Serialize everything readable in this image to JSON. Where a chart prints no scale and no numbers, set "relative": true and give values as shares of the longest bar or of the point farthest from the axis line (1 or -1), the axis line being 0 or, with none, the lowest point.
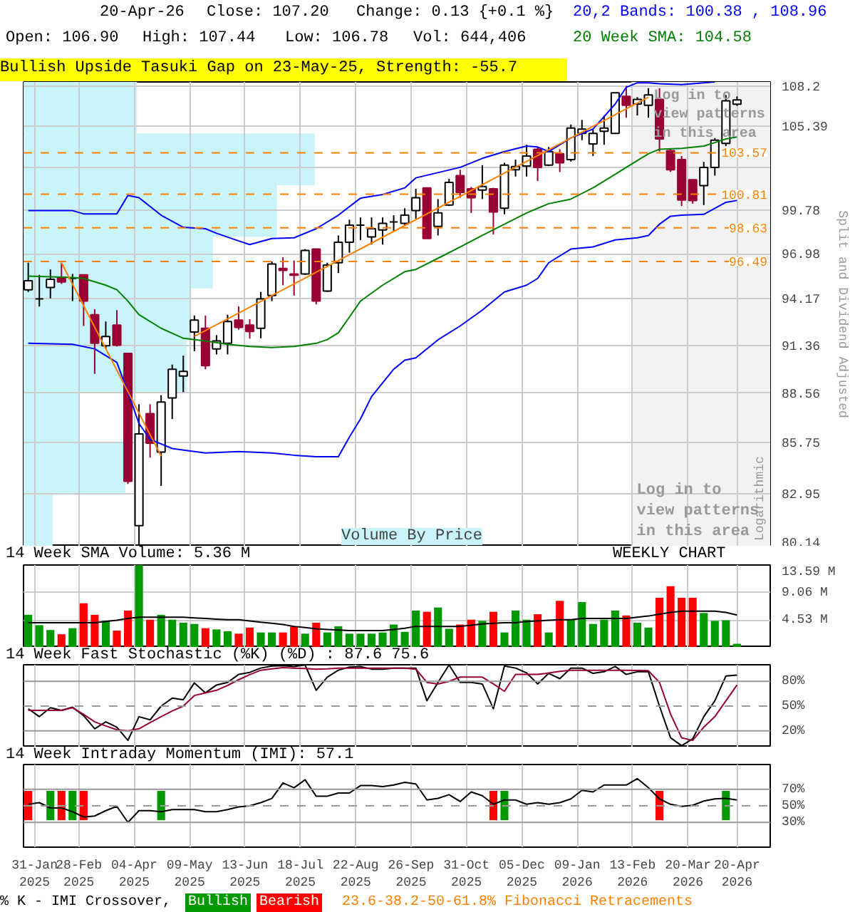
{
  "chart_data": [
    {
      "type": "candlestick",
      "title": "Bullish Upside Tasuki Gap on 23-May-25, Strength: -55.7",
      "ylabel": "Split and Dividend Adjusted",
      "log": true,
      "grid": true,
      "legend": "top right",
      "tick_labels": "y",
      "annotations": [
        "20-Apr-26",
        "Close: 107.20",
        "Change: 0.13 {+0.1 %}",
        "Open: 106.90",
        "High: 107.44",
        "Low: 106.78",
        "Vol: 644,406",
        "Log in to view patterns in this area",
        "Log in to view patterns in this area",
        "Logarithmic"
      ],
      "xlim": [
        "2025-01-24",
        "2026-05-11"
      ],
      "xticks": [
        "2025-01-31",
        "2025-02-28",
        "2025-04-04",
        "2025-05-09",
        "2025-06-13",
        "2025-07-18",
        "2025-08-22",
        "2025-09-26",
        "2025-10-31",
        "2025-12-05",
        "2026-01-09",
        "2026-02-13",
        "2026-03-20",
        "2026-04-20"
      ],
      "ylim": [
        80.14,
        108.46
      ],
      "yticks": [
        80.14,
        82.95,
        85.75,
        88.56,
        91.36,
        94.17,
        96.98,
        99.78,
        {
          "value": 102.59,
          "label": null
        },
        105.39,
        108.2
      ],
      "ref_lines": [
        {
          "axis": "y",
          "value": 103.57,
          "label": "103.57",
          "color": "#ff8000",
          "line_style": "dashed"
        },
        {
          "axis": "y",
          "value": 100.81,
          "label": "100.81",
          "color": "#ff8000",
          "line_style": "dashed"
        },
        {
          "axis": "y",
          "value": 98.63,
          "label": "98.63",
          "color": "#ff8000",
          "line_style": "dashed"
        },
        {
          "axis": "y",
          "value": 96.49,
          "label": "96.49",
          "color": "#ff8000",
          "line_style": "dashed"
        }
      ],
      "bands": [
        {
          "axis": "x",
          "from": "2026-02-12",
          "to": "2026-05-11",
          "color": "#f2f2f2"
        }
      ],
      "x": [
        "2025-01-27",
        "2025-02-03",
        "2025-02-10",
        "2025-02-17",
        "2025-02-24",
        "2025-03-03",
        "2025-03-10",
        "2025-03-17",
        "2025-03-24",
        "2025-03-31",
        "2025-04-07",
        "2025-04-14",
        "2025-04-21",
        "2025-04-28",
        "2025-05-05",
        "2025-05-12",
        "2025-05-19",
        "2025-05-26",
        "2025-06-02",
        "2025-06-09",
        "2025-06-16",
        "2025-06-23",
        "2025-06-30",
        "2025-07-07",
        "2025-07-14",
        "2025-07-21",
        "2025-07-28",
        "2025-08-04",
        "2025-08-11",
        "2025-08-18",
        "2025-08-25",
        "2025-09-01",
        "2025-09-08",
        "2025-09-15",
        "2025-09-22",
        "2025-09-29",
        "2025-10-06",
        "2025-10-13",
        "2025-10-20",
        "2025-10-27",
        "2025-11-03",
        "2025-11-10",
        "2025-11-17",
        "2025-11-24",
        "2025-12-01",
        "2025-12-08",
        "2025-12-15",
        "2025-12-22",
        "2025-12-29",
        "2026-01-05",
        "2026-01-12",
        "2026-01-19",
        "2026-01-26",
        "2026-02-02",
        "2026-02-09",
        "2026-02-16",
        "2026-02-23",
        "2026-03-02",
        "2026-03-09",
        "2026-03-16",
        "2026-03-23",
        "2026-03-30",
        "2026-04-06",
        "2026-04-13",
        "2026-04-20"
      ],
      "ohlc": [
        [
          94.73,
          96.41,
          94.59,
          95.29
        ],
        [
          94.17,
          95.65,
          93.7,
          94.17
        ],
        [
          94.87,
          95.99,
          94.2,
          95.37
        ],
        [
          95.51,
          96.41,
          95.09,
          95.21
        ],
        [
          95.43,
          95.71,
          94.03,
          95.43
        ],
        [
          95.65,
          95.65,
          92.52,
          94.03
        ],
        [
          93.2,
          93.53,
          89.68,
          91.48
        ],
        [
          91.34,
          92.79,
          91.15,
          91.89
        ],
        [
          92.57,
          93.48,
          91.29,
          91.37
        ],
        [
          90.88,
          90.88,
          83.47,
          83.62
        ],
        [
          81.24,
          87.92,
          80.2,
          86.24
        ],
        [
          87.39,
          87.92,
          84.92,
          85.72
        ],
        [
          85.22,
          88.44,
          83.37,
          88.05
        ],
        [
          88.28,
          90.22,
          87.08,
          89.95
        ],
        [
          89.55,
          90.75,
          88.62,
          89.82
        ],
        [
          92.16,
          93.15,
          91.01,
          92.87
        ],
        [
          92.38,
          93.15,
          89.95,
          90.16
        ],
        [
          91.15,
          91.97,
          90.82,
          91.62
        ],
        [
          91.48,
          93.2,
          90.82,
          92.79
        ],
        [
          92.87,
          93.7,
          92.3,
          92.43
        ],
        [
          92.57,
          92.93,
          91.76,
          92.19
        ],
        [
          92.38,
          94.59,
          91.78,
          94.17
        ],
        [
          94.37,
          96.49,
          94.03,
          96.33
        ],
        [
          96.05,
          96.75,
          95.01,
          95.93
        ],
        [
          95.71,
          96.55,
          94.37,
          95.63
        ],
        [
          95.71,
          97.27,
          95.65,
          97.19
        ],
        [
          97.27,
          97.27,
          93.83,
          94.03
        ],
        [
          94.65,
          96.41,
          94.59,
          96.27
        ],
        [
          96.41,
          98.14,
          95.77,
          97.7
        ],
        [
          97.7,
          99.15,
          97.04,
          98.8
        ],
        [
          98.8,
          99.3,
          97.85,
          98.8
        ],
        [
          98.05,
          99.3,
          97.56,
          98.57
        ],
        [
          98.49,
          99.3,
          97.56,
          98.92
        ],
        [
          99.01,
          99.44,
          98.43,
          99.01
        ],
        [
          98.92,
          99.89,
          98.8,
          99.44
        ],
        [
          99.74,
          101.17,
          99.21,
          100.58
        ],
        [
          101.23,
          101.23,
          97.94,
          97.94
        ],
        [
          98.72,
          100.49,
          98.14,
          99.59
        ],
        [
          100.1,
          101.83,
          100.04,
          101.59
        ],
        [
          102.04,
          102.43,
          100.58,
          100.93
        ],
        [
          101.17,
          101.29,
          99.59,
          100.58
        ],
        [
          101.08,
          102.74,
          100.49,
          101.32
        ],
        [
          101.17,
          101.23,
          98.2,
          99.65
        ],
        [
          99.89,
          102.9,
          99.5,
          102.74
        ],
        [
          102.43,
          103.11,
          101.98,
          102.65
        ],
        [
          102.68,
          104.11,
          101.98,
          103.35
        ],
        [
          103.81,
          103.96,
          101.68,
          102.59
        ],
        [
          102.74,
          103.96,
          102.68,
          103.65
        ],
        [
          103.5,
          103.81,
          102.28,
          102.9
        ],
        [
          103.11,
          105.49,
          102.98,
          105.25
        ],
        [
          104.88,
          105.81,
          104.42,
          105.18
        ],
        [
          104.17,
          105.18,
          103.35,
          104.88
        ],
        [
          105.03,
          106.12,
          104.11,
          105.25
        ],
        [
          104.88,
          107.7,
          104.88,
          107.7
        ],
        [
          107.45,
          108.18,
          105.96,
          106.82
        ],
        [
          106.91,
          107.39,
          106.12,
          107.23
        ],
        [
          106.82,
          108.02,
          105.96,
          107.54
        ],
        [
          107.23,
          108.02,
          103.65,
          104.51
        ],
        [
          103.71,
          103.81,
          102.28,
          102.43
        ],
        [
          103.11,
          103.35,
          100.04,
          100.43
        ],
        [
          101.77,
          101.77,
          100.19,
          100.4
        ],
        [
          101.38,
          102.96,
          100.1,
          102.59
        ],
        [
          102.59,
          104.57,
          102.04,
          104.42
        ],
        [
          104.2,
          107.54,
          104.02,
          107.13
        ],
        [
          106.9,
          107.44,
          106.78,
          107.2
        ]
      ],
      "colors": [
        "#ffffff",
        "#000000",
        "#ffffff",
        "#990033",
        "#000000",
        "#990033",
        "#990033",
        "#ffffff",
        "#990033",
        "#990033",
        "#ffffff",
        "#990033",
        "#ffffff",
        "#ffffff",
        "#ffffff",
        "#ffffff",
        "#990033",
        "#ffffff",
        "#ffffff",
        "#990033",
        "#990033",
        "#ffffff",
        "#ffffff",
        "#990033",
        "#990033",
        "#ffffff",
        "#990033",
        "#ffffff",
        "#ffffff",
        "#ffffff",
        "#000000",
        "#ffffff",
        "#ffffff",
        "#000000",
        "#ffffff",
        "#ffffff",
        "#990033",
        "#ffffff",
        "#ffffff",
        "#990033",
        "#990033",
        "#ffffff",
        "#990033",
        "#ffffff",
        "#ffffff",
        "#ffffff",
        "#990033",
        "#ffffff",
        "#990033",
        "#ffffff",
        "#ffffff",
        "#ffffff",
        "#ffffff",
        "#ffffff",
        "#990033",
        "#ffffff",
        "#ffffff",
        "#990033",
        "#990033",
        "#990033",
        "#990033",
        "#ffffff",
        "#ffffff",
        "#ffffff",
        "#ffffff"
      ],
      "series": [
        {
          "name": "20,2 Bands: 100.38 , 108.96",
          "type": "line",
          "color": "#0000ff",
          "x": [
            "2025-01-27",
            "2025-02-24",
            "2025-03-03",
            "2025-03-24",
            "2025-03-31",
            "2025-04-07",
            "2025-04-21",
            "2025-05-05",
            "2025-05-19",
            "2025-05-26",
            "2025-06-09",
            "2025-06-16",
            "2025-06-30",
            "2025-07-14",
            "2025-07-28",
            "2025-08-11",
            "2025-08-25",
            "2025-09-08",
            "2025-09-22",
            "2025-09-29",
            "2025-10-27",
            "2025-11-10",
            "2025-11-24",
            "2025-12-08",
            "2025-12-15",
            "2025-12-22",
            "2026-01-05",
            "2026-01-12",
            "2026-01-19",
            "2026-02-02",
            "2026-02-09",
            "2026-02-16",
            "2026-02-23",
            "2026-03-02",
            "2026-03-16",
            "2026-03-30",
            "2026-04-06"
          ],
          "values": [
            99.74,
            99.74,
            99.53,
            99.53,
            100.73,
            100.58,
            99.44,
            98.66,
            98.57,
            98.28,
            97.79,
            97.56,
            97.94,
            97.99,
            98.57,
            99.44,
            100.55,
            100.79,
            101.23,
            101.89,
            102.59,
            103.19,
            103.65,
            104.02,
            103.96,
            103.65,
            104.57,
            104.88,
            105.18,
            106.91,
            108.08,
            108.4,
            108.4,
            108.33,
            108.27,
            108.4,
            108.46
          ]
        },
        {
          "type": "line",
          "color": "#0000ff",
          "x": [
            "2025-01-27",
            "2025-02-24",
            "2025-03-10",
            "2025-03-24",
            "2025-03-31",
            "2025-04-07",
            "2025-04-14",
            "2025-04-28",
            "2025-05-19",
            "2025-06-09",
            "2025-06-30",
            "2025-07-14",
            "2025-07-28",
            "2025-08-11",
            "2025-08-18",
            "2025-08-25",
            "2025-09-01",
            "2025-09-15",
            "2025-09-22",
            "2025-09-29",
            "2025-10-13",
            "2025-10-27",
            "2025-11-10",
            "2025-11-24",
            "2025-12-08",
            "2025-12-15",
            "2025-12-22",
            "2026-01-05",
            "2026-01-19",
            "2026-02-02",
            "2026-02-16",
            "2026-02-23",
            "2026-03-02",
            "2026-03-09",
            "2026-03-16",
            "2026-03-30",
            "2026-04-06",
            "2026-04-13",
            "2026-04-20"
          ],
          "values": [
            91.48,
            91.42,
            91.15,
            90.35,
            88.62,
            86.82,
            85.93,
            85.42,
            85.17,
            85.25,
            85.17,
            85.05,
            84.97,
            84.97,
            86.06,
            87.08,
            88.36,
            89.95,
            90.48,
            90.62,
            91.69,
            92.52,
            93.48,
            94.59,
            95.01,
            95.43,
            96.41,
            97.27,
            97.41,
            97.85,
            97.99,
            98.14,
            98.86,
            99.38,
            99.44,
            99.5,
            99.89,
            100.28,
            100.4
          ]
        },
        {
          "name": "20 Week SMA: 104.58",
          "type": "line",
          "color": "#008000",
          "x": [
            "2025-01-27",
            "2025-02-24",
            "2025-03-03",
            "2025-03-17",
            "2025-03-24",
            "2025-03-31",
            "2025-04-07",
            "2025-04-21",
            "2025-05-05",
            "2025-05-19",
            "2025-06-02",
            "2025-06-16",
            "2025-06-30",
            "2025-07-14",
            "2025-07-28",
            "2025-08-04",
            "2025-08-11",
            "2025-08-18",
            "2025-08-25",
            "2025-09-08",
            "2025-09-22",
            "2025-09-29",
            "2025-10-13",
            "2025-10-27",
            "2025-11-10",
            "2025-11-24",
            "2025-12-08",
            "2025-12-22",
            "2026-01-05",
            "2026-01-19",
            "2026-02-02",
            "2026-02-09",
            "2026-02-16",
            "2026-02-23",
            "2026-03-02",
            "2026-03-16",
            "2026-03-30",
            "2026-04-06",
            "2026-04-13",
            "2026-04-20"
          ],
          "values": [
            95.57,
            95.49,
            95.43,
            95.01,
            94.73,
            94.03,
            93.2,
            92.38,
            91.78,
            91.62,
            91.42,
            91.29,
            91.23,
            91.29,
            91.48,
            91.7,
            92.11,
            93.06,
            94.03,
            95.01,
            95.85,
            95.99,
            96.69,
            97.41,
            98.14,
            98.86,
            99.59,
            100.19,
            100.49,
            101.23,
            102.13,
            102.59,
            103.04,
            103.5,
            103.81,
            103.87,
            104.02,
            104.26,
            104.51,
            104.64
          ]
        },
        {
          "type": "line",
          "color": "#ff8000",
          "x": [
            "2025-02-17",
            "2025-04-21"
          ],
          "values": [
            96.41,
            85.0
          ]
        },
        {
          "type": "line",
          "color": "#ff8000",
          "x": [
            "2025-05-12",
            "2026-02-23"
          ],
          "values": [
            91.89,
            107.39
          ]
        }
      ]
    },
    {
      "type": "bar",
      "grid": true,
      "legend": "top left",
      "tick_labels": "y",
      "annotations": [
        "WEEKLY CHART"
      ],
      "xlim": [
        "2025-01-24",
        "2026-05-11"
      ],
      "xticks": [
        "2025-01-31",
        "2025-02-28",
        "2025-04-04",
        "2025-05-09",
        "2025-06-13",
        "2025-07-18",
        "2025-08-22",
        "2025-09-26",
        "2025-10-31",
        "2025-12-05",
        "2026-01-09",
        "2026-02-13",
        "2026-03-20",
        "2026-04-20"
      ],
      "ylim": [
        0,
        13.59
      ],
      "yticks": [
        {
          "value": 4.53,
          "label": "4.53 M"
        },
        {
          "value": 9.06,
          "label": "9.06 M"
        },
        {
          "value": 13.59,
          "label": "13.59 M"
        }
      ],
      "x": [
        "2025-01-27",
        "2025-02-03",
        "2025-02-10",
        "2025-02-17",
        "2025-02-24",
        "2025-03-03",
        "2025-03-10",
        "2025-03-17",
        "2025-03-24",
        "2025-03-31",
        "2025-04-07",
        "2025-04-14",
        "2025-04-21",
        "2025-04-28",
        "2025-05-05",
        "2025-05-12",
        "2025-05-19",
        "2025-05-26",
        "2025-06-02",
        "2025-06-09",
        "2025-06-16",
        "2025-06-23",
        "2025-06-30",
        "2025-07-07",
        "2025-07-14",
        "2025-07-21",
        "2025-07-28",
        "2025-08-04",
        "2025-08-11",
        "2025-08-18",
        "2025-08-25",
        "2025-09-01",
        "2025-09-08",
        "2025-09-15",
        "2025-09-22",
        "2025-09-29",
        "2025-10-06",
        "2025-10-13",
        "2025-10-20",
        "2025-10-27",
        "2025-11-03",
        "2025-11-10",
        "2025-11-17",
        "2025-11-24",
        "2025-12-01",
        "2025-12-08",
        "2025-12-15",
        "2025-12-22",
        "2025-12-29",
        "2026-01-05",
        "2026-01-12",
        "2026-01-19",
        "2026-01-26",
        "2026-02-02",
        "2026-02-09",
        "2026-02-16",
        "2026-02-23",
        "2026-03-02",
        "2026-03-09",
        "2026-03-16",
        "2026-03-23",
        "2026-03-30",
        "2026-04-06",
        "2026-04-13",
        "2026-04-20"
      ],
      "series": [
        {
          "type": "bar",
          "values": [
            5.4,
            3.7,
            2.9,
            2.2,
            3.2,
            7.3,
            5.4,
            4.4,
            2.8,
            6.1,
            13.59,
            4.6,
            5.4,
            4.6,
            4.1,
            3.9,
            3.2,
            3.0,
            2.7,
            2.3,
            3.3,
            2.5,
            2.5,
            2.5,
            3.5,
            2.3,
            4.1,
            2.5,
            3.5,
            2.3,
            2.3,
            2.3,
            2.5,
            3.8,
            2.6,
            6.1,
            5.9,
            6.6,
            3.1,
            3.8,
            4.6,
            4.4,
            5.9,
            2.5,
            6.1,
            4.6,
            5.5,
            2.5,
            7.7,
            4.6,
            7.5,
            3.9,
            4.6,
            6.1,
            5.3,
            4.1,
            3.3,
            8.2,
            10.1,
            8.2,
            8.2,
            5.7,
            4.4,
            4.5,
            0.64
          ],
          "colors": [
            "#009900",
            "#009900",
            "#009900",
            "#ff0000",
            "#009900",
            "#ff0000",
            "#ff0000",
            "#009900",
            "#ff0000",
            "#ff0000",
            "#009900",
            "#ff0000",
            "#009900",
            "#009900",
            "#009900",
            "#009900",
            "#ff0000",
            "#009900",
            "#009900",
            "#ff0000",
            "#ff0000",
            "#009900",
            "#009900",
            "#ff0000",
            "#ff0000",
            "#009900",
            "#ff0000",
            "#009900",
            "#009900",
            "#009900",
            "#009900",
            "#009900",
            "#009900",
            "#009900",
            "#009900",
            "#009900",
            "#ff0000",
            "#009900",
            "#009900",
            "#ff0000",
            "#ff0000",
            "#009900",
            "#ff0000",
            "#009900",
            "#009900",
            "#009900",
            "#ff0000",
            "#009900",
            "#ff0000",
            "#009900",
            "#009900",
            "#009900",
            "#009900",
            "#009900",
            "#ff0000",
            "#009900",
            "#009900",
            "#ff0000",
            "#ff0000",
            "#ff0000",
            "#ff0000",
            "#009900",
            "#009900",
            "#009900",
            "#009900"
          ]
        },
        {
          "name": "14 Week SMA Volume: 5.36 M",
          "type": "line",
          "color": "#000000",
          "values": [
            4.1,
            4.1,
            4.1,
            4.1,
            4.1,
            4.1,
            4.1,
            4.3,
            4.5,
            4.8,
            5.0,
            5.0,
            5.0,
            5.0,
            5.0,
            4.9,
            4.8,
            4.7,
            4.6,
            4.6,
            4.4,
            4.2,
            4.0,
            3.8,
            3.5,
            3.3,
            3.1,
            3.0,
            2.9,
            2.8,
            2.8,
            2.8,
            2.8,
            3.0,
            3.2,
            3.5,
            3.5,
            3.5,
            3.5,
            3.5,
            3.7,
            3.9,
            4.0,
            4.1,
            4.1,
            4.3,
            4.4,
            4.5,
            4.6,
            4.6,
            4.8,
            4.8,
            4.8,
            4.8,
            4.8,
            5.0,
            5.2,
            5.5,
            5.8,
            6.0,
            6.0,
            6.0,
            6.0,
            5.8,
            5.36
          ]
        }
      ]
    },
    {
      "type": "line",
      "title": "14 Week Fast Stochastic (%K) (%D) : 87.6 75.6",
      "grid": "x",
      "tick_labels": "y",
      "xlim": [
        "2025-01-24",
        "2026-05-11"
      ],
      "xticks": [
        "2025-01-31",
        "2025-02-28",
        "2025-04-04",
        "2025-05-09",
        "2025-06-13",
        "2025-07-18",
        "2025-08-22",
        "2025-09-26",
        "2025-10-31",
        "2025-12-05",
        "2026-01-09",
        "2026-02-13",
        "2026-03-20",
        "2026-04-20"
      ],
      "ylim": [
        0,
        100
      ],
      "yticks": [
        {
          "value": 20,
          "label": "20%"
        },
        {
          "value": 50,
          "label": "50%"
        },
        {
          "value": 80,
          "label": "80%"
        }
      ],
      "ref_lines": [
        {
          "axis": "y",
          "value": 20,
          "color": "#999999",
          "line_style": "solid"
        },
        {
          "axis": "y",
          "value": 50,
          "color": "#999999",
          "line_style": "dashed"
        },
        {
          "axis": "y",
          "value": 80,
          "color": "#999999",
          "line_style": "solid"
        }
      ],
      "x": [
        "2025-01-27",
        "2025-02-03",
        "2025-02-10",
        "2025-02-17",
        "2025-02-24",
        "2025-03-03",
        "2025-03-10",
        "2025-03-17",
        "2025-03-24",
        "2025-03-31",
        "2025-04-07",
        "2025-04-14",
        "2025-04-21",
        "2025-04-28",
        "2025-05-05",
        "2025-05-12",
        "2025-05-19",
        "2025-05-26",
        "2025-06-02",
        "2025-06-09",
        "2025-06-16",
        "2025-06-23",
        "2025-06-30",
        "2025-07-07",
        "2025-07-14",
        "2025-07-21",
        "2025-07-28",
        "2025-08-04",
        "2025-08-11",
        "2025-08-18",
        "2025-08-25",
        "2025-09-01",
        "2025-09-08",
        "2025-09-15",
        "2025-09-22",
        "2025-09-29",
        "2025-10-06",
        "2025-10-13",
        "2025-10-20",
        "2025-10-27",
        "2025-11-03",
        "2025-11-10",
        "2025-11-17",
        "2025-11-24",
        "2025-12-01",
        "2025-12-08",
        "2025-12-15",
        "2025-12-22",
        "2025-12-29",
        "2026-01-05",
        "2026-01-12",
        "2026-01-19",
        "2026-01-26",
        "2026-02-02",
        "2026-02-09",
        "2026-02-16",
        "2026-02-23",
        "2026-03-02",
        "2026-03-09",
        "2026-03-16",
        "2026-03-23",
        "2026-03-30",
        "2026-04-06",
        "2026-04-13",
        "2026-04-20"
      ],
      "series": [
        {
          "type": "line",
          "color": "#000000",
          "values": [
            46.8,
            37.2,
            48.1,
            44.9,
            48.7,
            38.5,
            22.6,
            30.9,
            24.5,
            8.5,
            37.2,
            33.4,
            50,
            59.6,
            57.7,
            78.1,
            66,
            75.5,
            78.7,
            88.3,
            90.8,
            96,
            98.5,
            99,
            97.9,
            99.8,
            69.1,
            85.1,
            93.4,
            97.2,
            97.9,
            94.7,
            94.7,
            96,
            96,
            96,
            56.4,
            78.7,
            99.8,
            78.7,
            78.7,
            76.8,
            46.8,
            98.5,
            96,
            90.2,
            76.8,
            89.6,
            83.2,
            96,
            96,
            89.6,
            91.5,
            97.9,
            88.3,
            91.5,
            91.5,
            50,
            11.7,
            2.1,
            10.4,
            37.2,
            56.4,
            86.4,
            87.6
          ]
        },
        {
          "type": "line",
          "color": "#990033",
          "values": [
            44.9,
            44.9,
            44.9,
            44.9,
            48,
            40,
            30.9,
            26,
            21.3,
            20,
            22.6,
            30,
            37.2,
            44,
            50,
            62.8,
            66,
            69.1,
            75,
            81.9,
            88,
            93.4,
            95,
            96.6,
            96,
            95.5,
            94.7,
            95,
            96,
            96,
            96,
            96,
            96,
            96,
            96,
            94.7,
            78.7,
            76.8,
            80,
            85.1,
            85.1,
            85.1,
            76.8,
            67.9,
            88.3,
            88.3,
            88.3,
            90,
            92,
            93.4,
            93.4,
            93.4,
            93.4,
            93.4,
            93.4,
            93,
            92.8,
            78.7,
            40.4,
            11.7,
            8.5,
            24.5,
            37.2,
            56.4,
            75.6
          ]
        }
      ]
    },
    {
      "type": "line",
      "title": "14 Week Intraday Momentum (IMI): 57.1",
      "grid": "x",
      "legend": "bottom",
      "legend_title": "% K - IMI Crossover,",
      "annotations": [
        "23.6-38.2-50-61.8% Fibonacci Retracements"
      ],
      "xlim": [
        "2025-01-24",
        "2026-05-11"
      ],
      "xticks": [
        {
          "value": "2025-01-31",
          "label": "31-Jan\n2025"
        },
        {
          "value": "2025-02-28",
          "label": "28-Feb\n2025"
        },
        {
          "value": "2025-04-04",
          "label": "04-Apr\n2025"
        },
        {
          "value": "2025-05-09",
          "label": "09-May\n2025"
        },
        {
          "value": "2025-06-13",
          "label": "13-Jun\n2025"
        },
        {
          "value": "2025-07-18",
          "label": "18-Jul\n2025"
        },
        {
          "value": "2025-08-22",
          "label": "22-Aug\n2025"
        },
        {
          "value": "2025-09-26",
          "label": "26-Sep\n2025"
        },
        {
          "value": "2025-10-31",
          "label": "31-Oct\n2025"
        },
        {
          "value": "2025-12-05",
          "label": "05-Dec\n2025"
        },
        {
          "value": "2026-01-09",
          "label": "09-Jan\n2026"
        },
        {
          "value": "2026-02-13",
          "label": "13-Feb\n2026"
        },
        {
          "value": "2026-03-20",
          "label": "20-Mar\n2026"
        },
        {
          "value": "2026-04-20",
          "label": "20-Apr\n2026"
        }
      ],
      "ylim": [
        0,
        100
      ],
      "yticks": [
        {
          "value": 30,
          "label": "30%"
        },
        {
          "value": 50,
          "label": "50%"
        },
        {
          "value": 70,
          "label": "70%"
        }
      ],
      "ref_lines": [
        {
          "axis": "y",
          "value": 30,
          "color": "#999999",
          "line_style": "solid"
        },
        {
          "axis": "y",
          "value": 50,
          "color": "#999999",
          "line_style": "dashed"
        },
        {
          "axis": "y",
          "value": 70,
          "color": "#999999",
          "line_style": "solid"
        }
      ],
      "x": [
        "2025-01-27",
        "2025-02-03",
        "2025-02-10",
        "2025-02-17",
        "2025-02-24",
        "2025-03-03",
        "2025-03-10",
        "2025-03-17",
        "2025-03-24",
        "2025-03-31",
        "2025-04-07",
        "2025-04-14",
        "2025-04-21",
        "2025-04-28",
        "2025-05-05",
        "2025-05-12",
        "2025-05-19",
        "2025-05-26",
        "2025-06-02",
        "2025-06-09",
        "2025-06-16",
        "2025-06-23",
        "2025-06-30",
        "2025-07-07",
        "2025-07-14",
        "2025-07-21",
        "2025-07-28",
        "2025-08-04",
        "2025-08-11",
        "2025-08-18",
        "2025-08-25",
        "2025-09-01",
        "2025-09-08",
        "2025-09-15",
        "2025-09-22",
        "2025-09-29",
        "2025-10-06",
        "2025-10-13",
        "2025-10-20",
        "2025-10-27",
        "2025-11-03",
        "2025-11-10",
        "2025-11-17",
        "2025-11-24",
        "2025-12-01",
        "2025-12-08",
        "2025-12-15",
        "2025-12-22",
        "2025-12-29",
        "2026-01-05",
        "2026-01-12",
        "2026-01-19",
        "2026-01-26",
        "2026-02-02",
        "2026-02-09",
        "2026-02-16",
        "2026-02-23",
        "2026-03-02",
        "2026-03-09",
        "2026-03-16",
        "2026-03-23",
        "2026-03-30",
        "2026-04-06",
        "2026-04-13",
        "2026-04-20"
      ],
      "series": [
        {
          "type": "bar",
          "name": "Bullish",
          "color": "#009900",
          "x": [
            "2025-02-10",
            "2025-02-24",
            "2025-04-21",
            "2025-11-24",
            "2026-04-13"
          ],
          "base": [
            32.6,
            32.6,
            32.6,
            32.6,
            32.6
          ],
          "values": [
            35.5,
            35.5,
            35.5,
            35.5,
            35.5
          ]
        },
        {
          "type": "bar",
          "name": "Bearish",
          "color": "#ff0000",
          "x": [
            "2025-01-27",
            "2025-02-17",
            "2025-03-03",
            "2025-11-17",
            "2026-03-02"
          ],
          "base": [
            32.6,
            32.6,
            32.6,
            32.6,
            32.6
          ],
          "values": [
            35.5,
            35.5,
            35.5,
            35.5,
            35.5
          ]
        },
        {
          "type": "line",
          "color": "#000000",
          "values": [
            51.9,
            53.9,
            47.4,
            47.4,
            42.9,
            36.5,
            37.7,
            44.2,
            49.4,
            30,
            44.2,
            44.2,
            42.9,
            45.5,
            45.5,
            45.5,
            42.9,
            42.9,
            45.5,
            48.7,
            50,
            53.9,
            59,
            77.7,
            71.9,
            81.6,
            61.6,
            61.6,
            65.5,
            65.5,
            74.5,
            74.5,
            73.2,
            75.2,
            78.4,
            76.5,
            57.1,
            59,
            63.5,
            55.2,
            66.8,
            62.3,
            51.9,
            57.1,
            57.1,
            51.9,
            53.9,
            51.9,
            53.9,
            58.4,
            68.7,
            66.8,
            75.2,
            75.2,
            75.2,
            82.9,
            71.9,
            58.4,
            51.9,
            49.4,
            50.6,
            55.8,
            58.4,
            59,
            57.1
          ]
        }
      ]
    },
    {
      "type": "bar",
      "orientation": "horizontal",
      "relative": true,
      "legend": "bottom",
      "categories": [
        null,
        null,
        null,
        null,
        null,
        null,
        null,
        null,
        null
      ],
      "series": [
        {
          "name": "Volume By Price",
          "color": "#c8f4fa",
          "values": [
            0.39,
            1,
            0.87,
            0.65,
            0.57,
            0.56,
            0.19,
            0.35,
            0.1
          ]
        }
      ]
    }
  ]
}
